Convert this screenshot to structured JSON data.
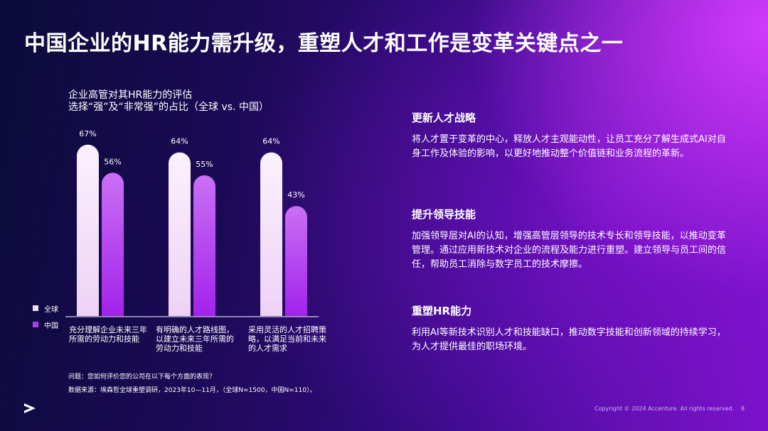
{
  "slide": {
    "title": "中国企业的HR能力需升级，重塑人才和工作是变革关键点之一",
    "chart_title_line1": "企业高管对其HR能力的评估",
    "chart_title_line2": "选择“强”及“非常强”的占比（全球 vs. 中国）",
    "question": "问题：您如何评价您的公司在以下每个方面的表现？",
    "source": "数据来源：埃森哲全球重塑调研，2023年10—11月，（全球N=1500，中国N=110）。",
    "copyright": "Copyright © 2024 Accenture. All rights reserved.",
    "page_number": "8",
    "logo_icon": "accenture-chevron-icon"
  },
  "sections": [
    {
      "heading": "更新人才战略",
      "body": "将人才置于变革的中心，释放人才主观能动性，让员工充分了解生成式AI对自身工作及体验的影响，以更好地推动整个价值链和业务流程的革新。"
    },
    {
      "heading": "提升领导技能",
      "body": "加强领导层对AI的认知，增强高管层领导的技术专长和领导技能，以推动变革管理。通过应用新技术对企业的流程及能力进行重塑。建立领导与员工间的信任，帮助员工消除与数字员工的技术摩擦。"
    },
    {
      "heading": "重塑HR能力",
      "body": "利用AI等新技术识别人才和技能缺口，推动数字技能和创新领域的持续学习，为人才提供最佳的职场环境。"
    }
  ],
  "chart_data": {
    "type": "bar",
    "categories": [
      "充分理解企业未来三年所需的劳动力和技能",
      "有明确的人才路线图，以建立未来三年所需的劳动力和技能",
      "采用灵活的人才招聘策略，以满足当前和未来的人才需求"
    ],
    "series": [
      {
        "name": "全球",
        "values": [
          67,
          64,
          64
        ],
        "labels": [
          "67%",
          "64%",
          "64%"
        ],
        "color": "#f2ddf8"
      },
      {
        "name": "中国",
        "values": [
          56,
          55,
          43
        ],
        "labels": [
          "56%",
          "55%",
          "43%"
        ],
        "color": "#b43cf0"
      }
    ],
    "unit": "%",
    "legend_position": "bottom-left",
    "grid": false
  }
}
